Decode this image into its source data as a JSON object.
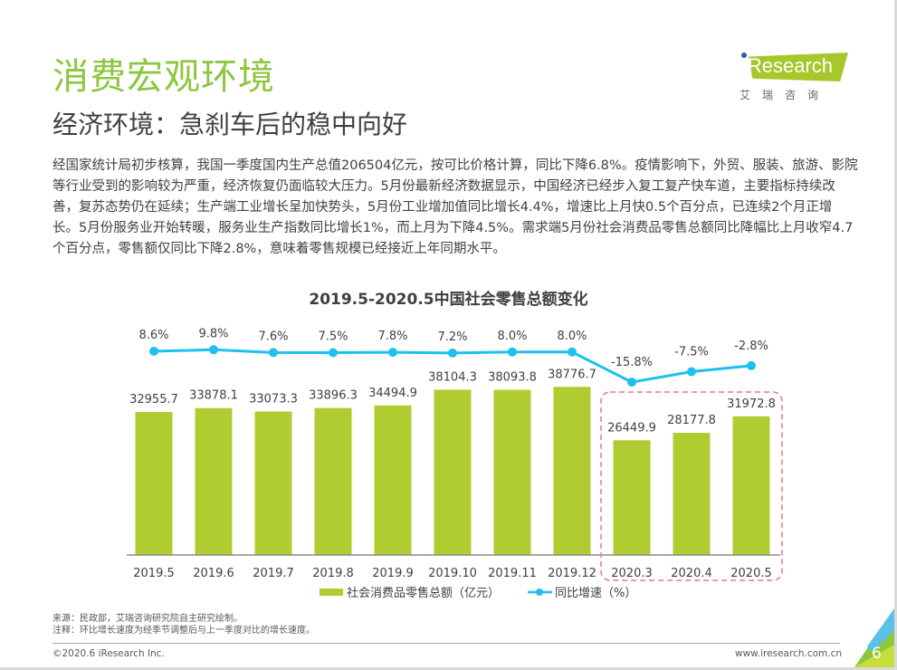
{
  "header": {
    "title": "消费宏观环境",
    "subtitle": "经济环境：急刹车后的稳中向好"
  },
  "logo": {
    "brand": "iResearch",
    "brand_cn": "艾瑞咨询"
  },
  "body": {
    "paragraph": "经国家统计局初步核算，我国一季度国内生产总值206504亿元，按可比价格计算，同比下降6.8%。疫情影响下，外贸、服装、旅游、影院等行业受到的影响较为严重，经济恢复仍面临较大压力。5月份最新经济数据显示，中国经济已经步入复工复产快车道，主要指标持续改善，复苏态势仍在延续；生产端工业增长呈加快势头，5月份工业增加值同比增长4.4%，增速比上月快0.5个百分点，已连续2个月正增长。5月份服务业开始转暖，服务业生产指数同比增长1%，而上月为下降4.5%。需求端5月份社会消费品零售总额同比降幅比上月收窄4.7个百分点，零售额仅同比下降2.8%，意味着零售规模已经接近上年同期水平。"
  },
  "chart_data": {
    "type": "bar",
    "title": "2019.5-2020.5中国社会零售总额变化",
    "categories": [
      "2019.5",
      "2019.6",
      "2019.7",
      "2019.8",
      "2019.9",
      "2019.10",
      "2019.11",
      "2019.12",
      "2020.3",
      "2020.4",
      "2020.5"
    ],
    "series": [
      {
        "name": "社会消费品零售总额（亿元）",
        "type": "bar",
        "color": "#afcd30",
        "values": [
          32955.7,
          33878.1,
          33073.3,
          33896.3,
          34494.9,
          38104.3,
          38093.8,
          38776.7,
          26449.9,
          28177.8,
          31972.8
        ],
        "labels": [
          "32955.7",
          "33878.1",
          "33073.3",
          "33896.3",
          "34494.9",
          "38104.3",
          "38093.8",
          "38776.7",
          "26449.9",
          "28177.8",
          "31972.8"
        ]
      },
      {
        "name": "同比增速（%）",
        "type": "line",
        "color": "#1fc0ef",
        "values": [
          8.6,
          9.8,
          7.6,
          7.5,
          7.8,
          7.2,
          8.0,
          8.0,
          -15.8,
          -7.5,
          -2.8
        ],
        "labels": [
          "8.6%",
          "9.8%",
          "7.6%",
          "7.5%",
          "7.8%",
          "7.2%",
          "8.0%",
          "8.0%",
          "-15.8%",
          "-7.5%",
          "-2.8%"
        ]
      }
    ],
    "highlight": {
      "categories": [
        "2020.3",
        "2020.4",
        "2020.5"
      ],
      "style": "dashed-box",
      "color": "#e27a8a"
    },
    "xlabel": "",
    "ylabel": "",
    "grid": false,
    "legend": "bottom-center"
  },
  "footer": {
    "source": "来源：民政部，艾瑞咨询研究院自主研究绘制。",
    "note": "注释：环比增长速度为经季节调整后与上一季度对比的增长速度。",
    "copyright": "©2020.6 iResearch Inc.",
    "website": "www.iresearch.com.cn",
    "page_number": "6"
  }
}
